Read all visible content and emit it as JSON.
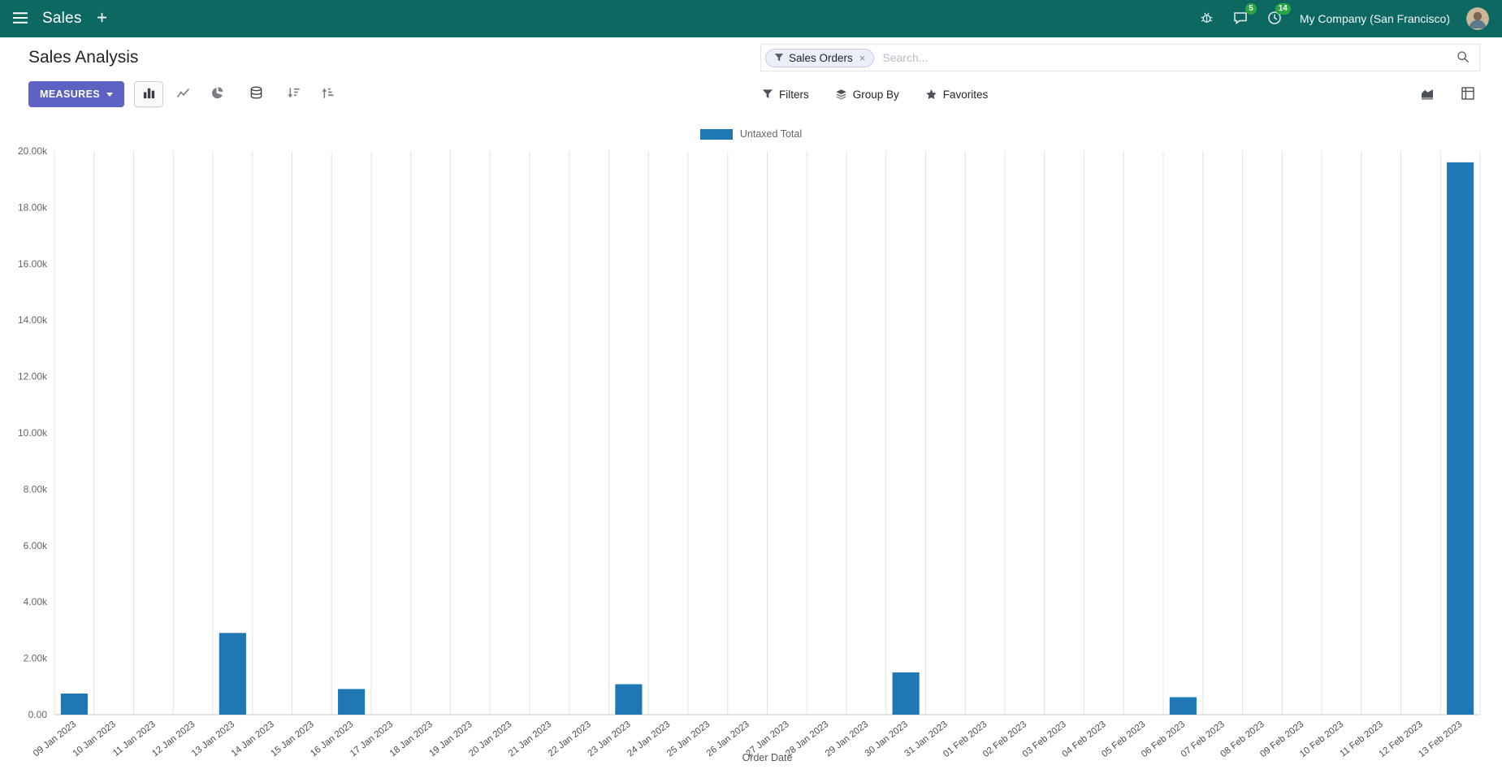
{
  "navbar": {
    "app_name": "Sales",
    "messages_badge": "5",
    "activities_badge": "14",
    "company": "My Company (San Francisco)"
  },
  "control_panel": {
    "title": "Sales Analysis",
    "measures_label": "MEASURES",
    "search": {
      "facet_label": "Sales Orders",
      "placeholder": "Search...",
      "remove_label": "×"
    },
    "filters_label": "Filters",
    "group_by_label": "Group By",
    "favorites_label": "Favorites"
  },
  "chart_data": {
    "type": "bar",
    "title": "",
    "xlabel": "Order Date",
    "ylabel": "",
    "ylim": [
      0,
      20000
    ],
    "y_tick_labels": [
      "0.00",
      "2.00k",
      "4.00k",
      "6.00k",
      "8.00k",
      "10.00k",
      "12.00k",
      "14.00k",
      "16.00k",
      "18.00k",
      "20.00k"
    ],
    "legend_position": "top",
    "grid": "vertical",
    "categories": [
      "09 Jan 2023",
      "10 Jan 2023",
      "11 Jan 2023",
      "12 Jan 2023",
      "13 Jan 2023",
      "14 Jan 2023",
      "15 Jan 2023",
      "16 Jan 2023",
      "17 Jan 2023",
      "18 Jan 2023",
      "19 Jan 2023",
      "20 Jan 2023",
      "21 Jan 2023",
      "22 Jan 2023",
      "23 Jan 2023",
      "24 Jan 2023",
      "25 Jan 2023",
      "26 Jan 2023",
      "27 Jan 2023",
      "28 Jan 2023",
      "29 Jan 2023",
      "30 Jan 2023",
      "31 Jan 2023",
      "01 Feb 2023",
      "02 Feb 2023",
      "03 Feb 2023",
      "04 Feb 2023",
      "05 Feb 2023",
      "06 Feb 2023",
      "07 Feb 2023",
      "08 Feb 2023",
      "09 Feb 2023",
      "10 Feb 2023",
      "11 Feb 2023",
      "12 Feb 2023",
      "13 Feb 2023"
    ],
    "series": [
      {
        "name": "Untaxed Total",
        "color": "#1f77b4",
        "values": [
          750,
          0,
          0,
          0,
          2900,
          0,
          0,
          910,
          0,
          0,
          0,
          0,
          0,
          0,
          1080,
          0,
          0,
          0,
          0,
          0,
          0,
          1500,
          0,
          0,
          0,
          0,
          0,
          0,
          620,
          0,
          0,
          0,
          0,
          0,
          0,
          19600
        ]
      }
    ]
  },
  "colors": {
    "navbar_bg": "#0e6862",
    "primary_button": "#5b62c1",
    "badge_green": "#28a745",
    "bar_blue": "#1f77b4"
  }
}
